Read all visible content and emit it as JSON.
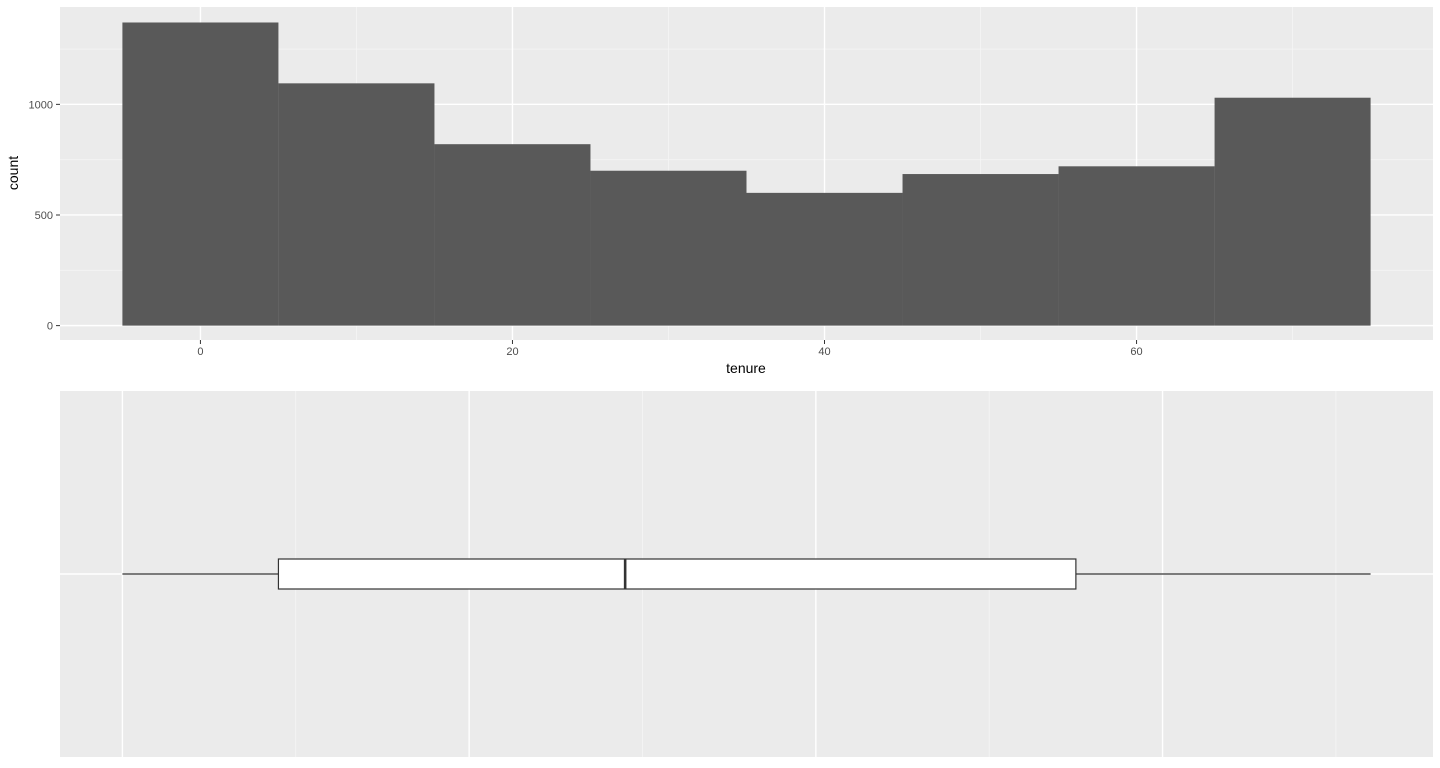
{
  "chart_data": [
    {
      "type": "bar",
      "subtype": "histogram",
      "title": "",
      "xlabel": "tenure",
      "ylabel": "count",
      "bin_width": 10,
      "bins": [
        {
          "start": -5,
          "end": 5,
          "count": 1370
        },
        {
          "start": 5,
          "end": 15,
          "count": 1095
        },
        {
          "start": 15,
          "end": 25,
          "count": 820
        },
        {
          "start": 25,
          "end": 35,
          "count": 700
        },
        {
          "start": 35,
          "end": 45,
          "count": 600
        },
        {
          "start": 45,
          "end": 55,
          "count": 685
        },
        {
          "start": 55,
          "end": 65,
          "count": 720
        },
        {
          "start": 65,
          "end": 75,
          "count": 1030
        }
      ],
      "xlim": [
        -9,
        79
      ],
      "ylim": [
        -65,
        1440
      ],
      "x_ticks": [
        0,
        20,
        40,
        60
      ],
      "x_tick_labels": [
        "0",
        "20",
        "40",
        "60"
      ],
      "y_ticks": [
        0,
        500,
        1000
      ],
      "y_tick_labels": [
        "0",
        "500",
        "1000"
      ],
      "bar_color": "#595959",
      "panel_color": "#ebebeb",
      "grid": true
    },
    {
      "type": "boxplot",
      "orientation": "horizontal",
      "variable": "tenure",
      "min": 0,
      "q1": 9,
      "median": 29,
      "q3": 55,
      "max": 72,
      "xlim": [
        -3.6,
        75.6
      ],
      "x_axis_labels_shown": false,
      "box_fill": "#ffffff",
      "line_color": "#333333",
      "panel_color": "#ebebeb",
      "grid": true
    }
  ],
  "theme": {
    "panel_bg": "#ebebeb",
    "grid_major": "#ffffff",
    "grid_minor": "#f5f5f5",
    "text_color": "#4d4d4d",
    "title_color": "#000000"
  }
}
